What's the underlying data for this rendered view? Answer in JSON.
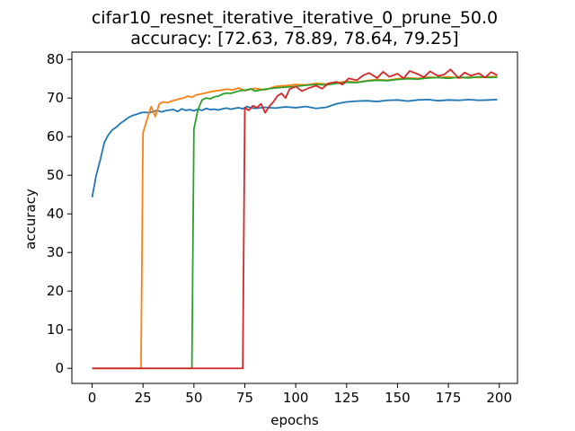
{
  "chart_data": {
    "type": "line",
    "title_line1": "cifar10_resnet_iterative_iterative_0_prune_50.0",
    "title_line2": "accuracy: [72.63, 78.89, 78.64, 79.25]",
    "xlabel": "epochs",
    "ylabel": "accuracy",
    "xlim": [
      -9.95,
      208.95
    ],
    "ylim": [
      -3.9,
      81.9
    ],
    "xticks": [
      0,
      25,
      50,
      75,
      100,
      125,
      150,
      175,
      200
    ],
    "yticks": [
      0,
      10,
      20,
      30,
      40,
      50,
      60,
      70,
      80
    ],
    "grid": false,
    "series": [
      {
        "color": "#1f77b4",
        "x": [
          0,
          2,
          4,
          6,
          8,
          10,
          12,
          14,
          16,
          18,
          20,
          22,
          24,
          26,
          28,
          30,
          32,
          34,
          36,
          38,
          40,
          42,
          44,
          46,
          48,
          50,
          52,
          54,
          56,
          58,
          60,
          62,
          64,
          66,
          68,
          70,
          72,
          74,
          76,
          78,
          80,
          85,
          90,
          95,
          100,
          105,
          110,
          115,
          120,
          125,
          130,
          135,
          140,
          145,
          150,
          155,
          160,
          165,
          170,
          175,
          180,
          185,
          190,
          195,
          199
        ],
        "values": [
          44.3,
          50,
          54,
          58.5,
          60.5,
          61.8,
          62.5,
          63.5,
          64.2,
          65,
          65.5,
          65.8,
          66.2,
          66.3,
          66.2,
          66.5,
          66.8,
          66.4,
          66.7,
          66.9,
          67,
          66.5,
          67.2,
          66.8,
          67,
          66.7,
          67.1,
          66.8,
          67.3,
          67,
          67.1,
          66.9,
          67.2,
          67.4,
          67.1,
          67.3,
          67.5,
          67.2,
          67.8,
          67.5,
          67.3,
          67.6,
          67.4,
          67.7,
          67.5,
          67.8,
          67.3,
          67.6,
          68.5,
          69,
          69.2,
          69.3,
          69.1,
          69.4,
          69.5,
          69.2,
          69.5,
          69.6,
          69.3,
          69.5,
          69.4,
          69.6,
          69.4,
          69.5,
          69.6
        ]
      },
      {
        "color": "#ff7f0e",
        "x": [
          0,
          24,
          25,
          27,
          29,
          31,
          33,
          35,
          37,
          39,
          41,
          43,
          45,
          47,
          49,
          51,
          53,
          55,
          57,
          60,
          63,
          66,
          69,
          72,
          75,
          80,
          85,
          90,
          95,
          100,
          105,
          110,
          115,
          120,
          125,
          130,
          135,
          140,
          145,
          150,
          155,
          160,
          165,
          170,
          175,
          180,
          185,
          190,
          195,
          199
        ],
        "values": [
          0,
          0,
          61,
          64.5,
          67.8,
          65.2,
          68.5,
          69,
          68.8,
          69.2,
          69.5,
          69.8,
          70,
          70.5,
          70.2,
          70.8,
          71,
          71.2,
          71.5,
          71.8,
          72,
          72.3,
          72.1,
          72.6,
          71.9,
          72.5,
          72.1,
          73,
          73.2,
          73.5,
          73.4,
          73.8,
          73.6,
          74,
          74.3,
          74.1,
          74.5,
          74.8,
          74.6,
          75,
          75.2,
          75.1,
          75.4,
          75.3,
          75.5,
          75.2,
          75.4,
          75.3,
          75.5,
          75.6
        ]
      },
      {
        "color": "#2ca02c",
        "x": [
          0,
          49,
          50,
          52,
          54,
          56,
          58,
          60,
          62,
          64,
          66,
          68,
          70,
          72,
          74,
          76,
          78,
          80,
          85,
          90,
          95,
          100,
          105,
          110,
          115,
          120,
          125,
          130,
          135,
          140,
          145,
          150,
          155,
          160,
          165,
          170,
          175,
          180,
          185,
          190,
          195,
          199
        ],
        "values": [
          0,
          0,
          62,
          67,
          69.5,
          70,
          69.8,
          70.3,
          70.5,
          71,
          71.3,
          71.2,
          71.5,
          71.8,
          72,
          72.1,
          72.4,
          71.8,
          72.3,
          72.6,
          72.8,
          73,
          73.3,
          73.5,
          73.4,
          73.8,
          74.1,
          74,
          74.4,
          74.6,
          74.5,
          74.8,
          75,
          74.9,
          75.2,
          75.3,
          75.1,
          75.4,
          75.2,
          75.5,
          75.3,
          75.4
        ]
      },
      {
        "color": "#d62728",
        "x": [
          0,
          74,
          75,
          77,
          79,
          81,
          83,
          85,
          87,
          89,
          91,
          93,
          95,
          97,
          100,
          103,
          106,
          110,
          113,
          116,
          120,
          123,
          126,
          130,
          133,
          136,
          140,
          143,
          146,
          150,
          153,
          156,
          160,
          163,
          166,
          170,
          173,
          176,
          180,
          183,
          186,
          190,
          193,
          196,
          199
        ],
        "values": [
          0,
          0,
          67.5,
          66.8,
          68,
          67.5,
          68.5,
          66.2,
          67.8,
          69,
          70.5,
          71.2,
          70,
          72.3,
          73,
          71.8,
          72.5,
          73.2,
          72.4,
          73.8,
          74.2,
          73.5,
          75.1,
          74.6,
          75.8,
          76.5,
          75.2,
          76.8,
          75.5,
          76.3,
          75.1,
          77,
          76.2,
          75.4,
          76.9,
          75.7,
          76.1,
          77.4,
          75.2,
          76.6,
          75.8,
          76.4,
          75.3,
          76.7,
          75.9
        ]
      }
    ]
  }
}
